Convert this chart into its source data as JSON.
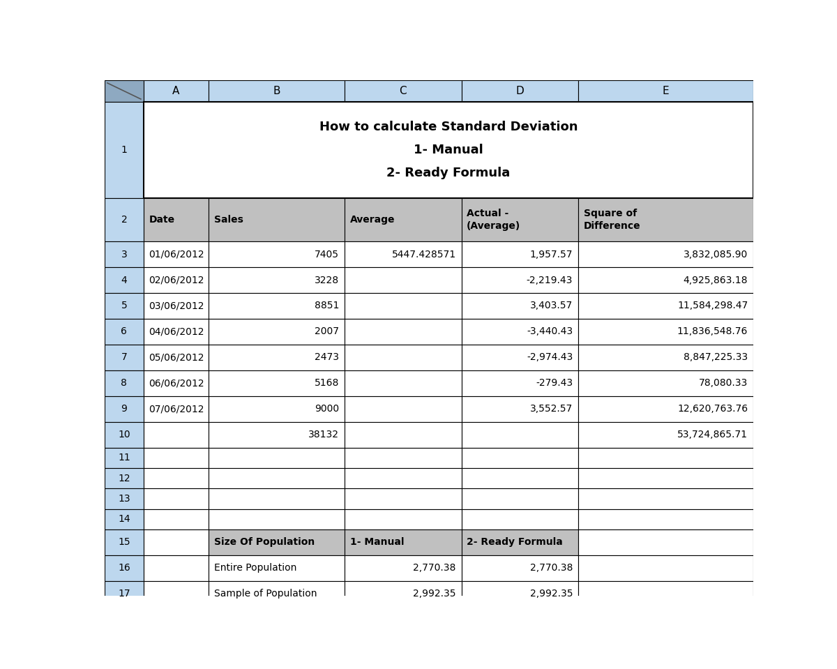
{
  "title_lines": [
    "How to calculate Standard Deviation",
    "1- Manual",
    "2- Ready Formula"
  ],
  "col_letters": [
    "A",
    "B",
    "C",
    "D",
    "E"
  ],
  "header_row": [
    "Date",
    "Sales",
    "Average",
    "Actual -\n(Average)",
    "Square of\nDifference"
  ],
  "data_rows": [
    [
      "01/06/2012",
      "7405",
      "5447.428571",
      "1,957.57",
      "3,832,085.90"
    ],
    [
      "02/06/2012",
      "3228",
      "",
      "-2,219.43",
      "4,925,863.18"
    ],
    [
      "03/06/2012",
      "8851",
      "",
      "3,403.57",
      "11,584,298.47"
    ],
    [
      "04/06/2012",
      "2007",
      "",
      "-3,440.43",
      "11,836,548.76"
    ],
    [
      "05/06/2012",
      "2473",
      "",
      "-2,974.43",
      "8,847,225.33"
    ],
    [
      "06/06/2012",
      "5168",
      "",
      "-279.43",
      "78,080.33"
    ],
    [
      "07/06/2012",
      "9000",
      "",
      "3,552.57",
      "12,620,763.76"
    ]
  ],
  "row10_B": "38132",
  "row10_E": "53,724,865.71",
  "row15": [
    "Size Of Population",
    "1- Manual",
    "2- Ready Formula"
  ],
  "row16": [
    "Entire Population",
    "2,770.38",
    "2,770.38"
  ],
  "row17": [
    "Sample of Population",
    "2,992.35",
    "2,992.35"
  ],
  "header_bg": "#C0C0C0",
  "white_bg": "#FFFFFF",
  "row_num_bg": "#BDD7EE",
  "col_header_bg": "#BDD7EE",
  "corner_bg": "#8EA9C1"
}
